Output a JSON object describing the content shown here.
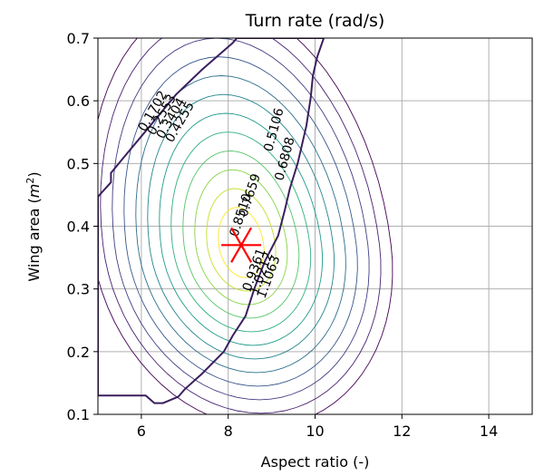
{
  "chart_data": {
    "type": "contour",
    "title": "Turn rate (rad/s)",
    "xlabel": "Aspect ratio (-)",
    "ylabel_text": "Wing area (",
    "ylabel_math": "m",
    "ylabel_sup": "2",
    "ylabel_close": ")",
    "xlim": [
      5,
      15
    ],
    "ylim": [
      0.1,
      0.7
    ],
    "xticks": [
      6,
      8,
      10,
      12,
      14
    ],
    "yticks": [
      0.1,
      0.2,
      0.3,
      0.4,
      0.5,
      0.6,
      0.7
    ],
    "grid": true,
    "colormap": "viridis",
    "colors": {
      "outline": "#3b1f5e",
      "marker": "#ff0000",
      "grid": "#b0b0b0"
    },
    "optimum": {
      "x": 8.3,
      "y": 0.37,
      "marker": "red-star"
    },
    "contour_labels": [
      "0.1702",
      "0.2553",
      "0.3404",
      "0.4255",
      "0.5106",
      "0.6808",
      "0.7659",
      "0.8510",
      "0.9361",
      "1.0212",
      "1.1063"
    ],
    "contour_levels": [
      0.17,
      0.26,
      0.34,
      0.43,
      0.51,
      0.6,
      0.68,
      0.77,
      0.85,
      0.94,
      1.02,
      1.11
    ]
  }
}
